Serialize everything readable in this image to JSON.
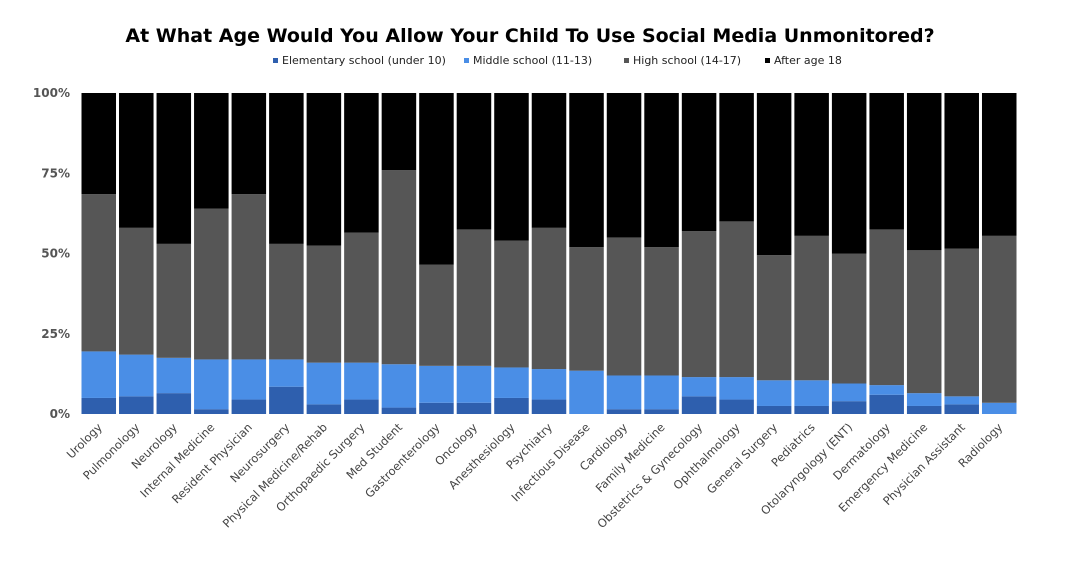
{
  "chart_data": {
    "type": "bar",
    "stacked": true,
    "normalized": true,
    "title": "At What Age Would You Allow Your Child To Use Social Media Unmonitored?",
    "xlabel": "",
    "ylabel": "",
    "ylim": [
      0,
      100
    ],
    "y_ticks": [
      "0%",
      "25%",
      "50%",
      "75%",
      "100%"
    ],
    "y_tick_values": [
      0,
      25,
      50,
      75,
      100
    ],
    "legend_position": "top-center",
    "grid": false,
    "categories": [
      "Urology",
      "Pulmonology",
      "Neurology",
      "Internal Medicine",
      "Resident Physician",
      "Neurosurgery",
      "Physical Medicine/Rehab",
      "Orthopaedic Surgery",
      "Med Student",
      "Gastroenterology",
      "Oncology",
      "Anesthesiology",
      "Psychiatry",
      "Infectious Disease",
      "Cardiology",
      "Family Medicine",
      "Obstetrics & Gynecology",
      "Ophthalmology",
      "General Surgery",
      "Pediatrics",
      "Otolaryngology (ENT)",
      "Dermatology",
      "Emergency Medicine",
      "Physician Assistant",
      "Radiology"
    ],
    "series": [
      {
        "name": "Elementary school (under 10)",
        "color": "#2e5fae",
        "values": [
          5,
          5.5,
          6.5,
          1.5,
          4.5,
          8.5,
          3,
          4.5,
          2,
          3.5,
          3.5,
          5,
          4.5,
          0,
          1.5,
          1.5,
          5.5,
          4.5,
          2.5,
          2.5,
          4,
          6,
          2.5,
          3,
          0
        ]
      },
      {
        "name": "Middle school (11-13)",
        "color": "#4a8ee6",
        "values": [
          14.5,
          13,
          11,
          15.5,
          12.5,
          8.5,
          13,
          11.5,
          13.5,
          11.5,
          11.5,
          9.5,
          9.5,
          13.5,
          10.5,
          10.5,
          6,
          7,
          8,
          8,
          5.5,
          3,
          4,
          2.5,
          3.5
        ]
      },
      {
        "name": "High school (14-17)",
        "color": "#565656",
        "values": [
          49,
          39.5,
          35.5,
          47,
          51.5,
          36,
          36.5,
          40.5,
          60.5,
          31.5,
          42.5,
          39.5,
          44,
          38.5,
          43,
          40,
          45.5,
          48.5,
          39,
          45,
          40.5,
          48.5,
          44.5,
          46,
          52
        ]
      },
      {
        "name": "After age 18",
        "color": "#000000",
        "values": [
          31.5,
          42,
          47,
          36,
          31.5,
          47,
          47.5,
          43.5,
          24,
          53.5,
          42.5,
          46,
          42,
          48,
          45,
          48,
          43,
          40,
          50.5,
          44.5,
          50,
          42.5,
          49,
          48.5,
          44.5
        ]
      }
    ]
  }
}
